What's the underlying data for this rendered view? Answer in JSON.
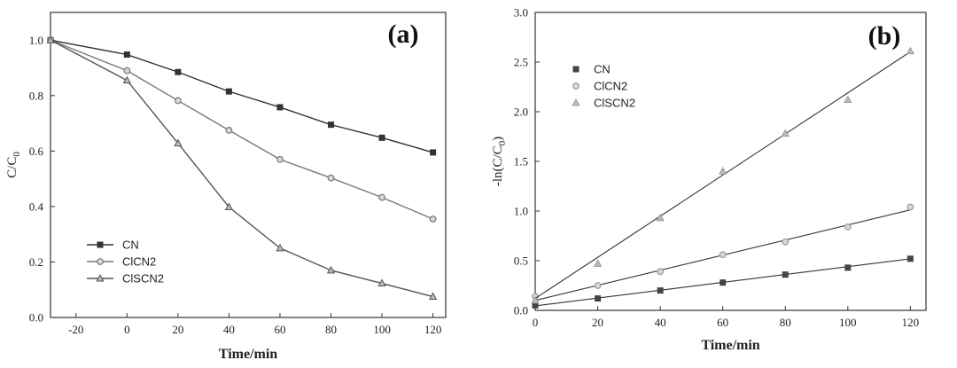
{
  "chart_data": [
    {
      "type": "line",
      "panel_label": "(a)",
      "title": "",
      "xlabel": "Time/min",
      "ylabel": "C/C",
      "ylabel_sub": "0",
      "xlim": [
        -30,
        125
      ],
      "ylim": [
        0,
        1.1
      ],
      "x_ticks": [
        -20,
        0,
        20,
        40,
        60,
        80,
        100,
        120
      ],
      "y_ticks": [
        0.0,
        0.2,
        0.4,
        0.6,
        0.8,
        1.0
      ],
      "x_tick_labels": [
        "-20",
        "0",
        "20",
        "40",
        "60",
        "80",
        "100",
        "120"
      ],
      "y_tick_labels": [
        "0.0",
        "0.2",
        "0.4",
        "0.6",
        "0.8",
        "1.0"
      ],
      "legend_position": "bottom-left",
      "x": [
        -30,
        0,
        20,
        40,
        60,
        80,
        100,
        120
      ],
      "series": [
        {
          "name": "CN",
          "marker": "square",
          "color": "#333333",
          "values": [
            1.0,
            0.948,
            0.885,
            0.815,
            0.758,
            0.695,
            0.648,
            0.595
          ]
        },
        {
          "name": "ClCN2",
          "marker": "circle",
          "color": "#777777",
          "values": [
            1.0,
            0.89,
            0.782,
            0.675,
            0.57,
            0.503,
            0.433,
            0.355
          ]
        },
        {
          "name": "ClSCN2",
          "marker": "triangle",
          "color": "#555555",
          "values": [
            1.0,
            0.855,
            0.628,
            0.398,
            0.25,
            0.17,
            0.123,
            0.075
          ]
        }
      ]
    },
    {
      "type": "scatter",
      "panel_label": "(b)",
      "title": "",
      "xlabel": "Time/min",
      "ylabel": "-ln(C/C",
      "ylabel_sub": "0",
      "ylabel_close": ")",
      "xlim": [
        0,
        125
      ],
      "ylim": [
        0,
        3.0
      ],
      "x_ticks": [
        0,
        20,
        40,
        60,
        80,
        100,
        120
      ],
      "y_ticks": [
        0.0,
        0.5,
        1.0,
        1.5,
        2.0,
        2.5,
        3.0
      ],
      "x_tick_labels": [
        "0",
        "20",
        "40",
        "60",
        "80",
        "100",
        "120"
      ],
      "y_tick_labels": [
        "0.0",
        "0.5",
        "1.0",
        "1.5",
        "2.0",
        "2.5",
        "3.0"
      ],
      "legend_position": "top-left",
      "x": [
        0,
        20,
        40,
        60,
        80,
        100,
        120
      ],
      "series": [
        {
          "name": "CN",
          "marker": "square",
          "color": "#444444",
          "values": [
            0.05,
            0.12,
            0.2,
            0.28,
            0.36,
            0.43,
            0.52
          ],
          "fit": [
            0.045,
            0.00395
          ]
        },
        {
          "name": "ClCN2",
          "marker": "circle",
          "color": "#999999",
          "values": [
            0.14,
            0.25,
            0.39,
            0.56,
            0.69,
            0.84,
            1.04
          ],
          "fit": [
            0.1,
            0.0076
          ]
        },
        {
          "name": "ClSCN2",
          "marker": "triangle",
          "color": "#999999",
          "values": [
            0.1,
            0.47,
            0.93,
            1.4,
            1.78,
            2.12,
            2.61
          ],
          "fit": [
            0.12,
            0.0207
          ]
        }
      ]
    }
  ]
}
